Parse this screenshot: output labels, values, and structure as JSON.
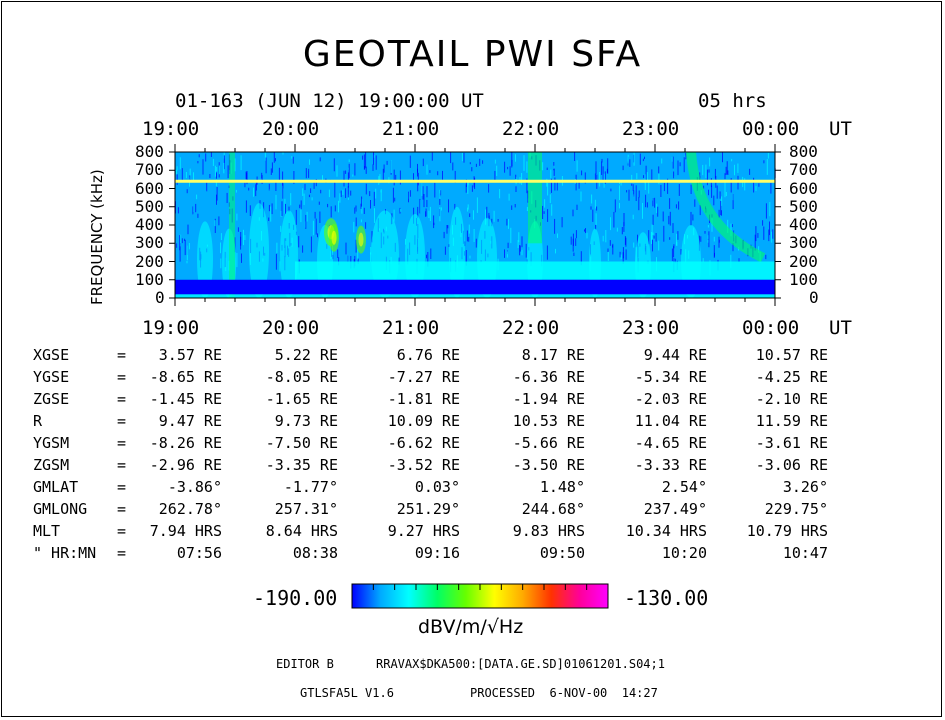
{
  "title": "GEOTAIL PWI SFA",
  "subtitle": "01-163 (JUN 12) 19:00:00 UT",
  "duration": "05 hrs",
  "chart_data": {
    "type": "heatmap",
    "xlabel": "UT",
    "ylabel": "FREQUENCY (kHz)",
    "x_ticks": [
      "19:00",
      "20:00",
      "21:00",
      "22:00",
      "23:00",
      "00:00"
    ],
    "x_unit": "UT",
    "y_ticks": [
      0,
      100,
      200,
      300,
      400,
      500,
      600,
      700,
      800
    ],
    "ylim": [
      0,
      800
    ],
    "colorbar": {
      "min_label": "-190.00",
      "max_label": "-130.00",
      "min": -190.0,
      "max": -130.0,
      "unit": "dBV/m/√Hz",
      "colors": [
        "#0000ff",
        "#00aaff",
        "#00ffff",
        "#00ff66",
        "#66ff00",
        "#ffff00",
        "#ffaa00",
        "#ff3300",
        "#ff0099",
        "#ff00ff"
      ]
    },
    "background_color": "#00aaff",
    "features": {
      "horizontal_line_khz": 640,
      "line_color": "#ffff66"
    }
  },
  "orbit": {
    "rows": [
      {
        "label": "XGSE",
        "sep": "=",
        "values": [
          "3.57 RE",
          "5.22 RE",
          "6.76 RE",
          "8.17 RE",
          "9.44 RE",
          "10.57 RE"
        ]
      },
      {
        "label": "YGSE",
        "sep": "=",
        "values": [
          "-8.65 RE",
          "-8.05 RE",
          "-7.27 RE",
          "-6.36 RE",
          "-5.34 RE",
          "-4.25 RE"
        ]
      },
      {
        "label": "ZGSE",
        "sep": "=",
        "values": [
          "-1.45 RE",
          "-1.65 RE",
          "-1.81 RE",
          "-1.94 RE",
          "-2.03 RE",
          "-2.10 RE"
        ]
      },
      {
        "label": "R",
        "sep": "=",
        "values": [
          "9.47 RE",
          "9.73 RE",
          "10.09 RE",
          "10.53 RE",
          "11.04 RE",
          "11.59 RE"
        ]
      },
      {
        "label": "YGSM",
        "sep": "=",
        "values": [
          "-8.26 RE",
          "-7.50 RE",
          "-6.62 RE",
          "-5.66 RE",
          "-4.65 RE",
          "-3.61 RE"
        ]
      },
      {
        "label": "ZGSM",
        "sep": "=",
        "values": [
          "-2.96 RE",
          "-3.35 RE",
          "-3.52 RE",
          "-3.50 RE",
          "-3.33 RE",
          "-3.06 RE"
        ]
      },
      {
        "label": "GMLAT",
        "sep": "=",
        "values": [
          "-3.86°",
          "-1.77°",
          "0.03°",
          "1.48°",
          "2.54°",
          "3.26°"
        ]
      },
      {
        "label": "GMLONG",
        "sep": "=",
        "values": [
          "262.78°",
          "257.31°",
          "251.29°",
          "244.68°",
          "237.49°",
          "229.75°"
        ]
      },
      {
        "label": "MLT",
        "sep": "=",
        "values": [
          "7.94 HRS",
          "8.64 HRS",
          "9.27 HRS",
          "9.83 HRS",
          "10.34 HRS",
          "10.79 HRS"
        ]
      },
      {
        "label": "\" HR:MN",
        "sep": "=",
        "values": [
          "07:56",
          "08:38",
          "09:16",
          "09:50",
          "10:20",
          "10:47"
        ]
      }
    ]
  },
  "footer": {
    "editor": "EDITOR B",
    "path": "RRAVAX$DKA500:[DATA.GE.SD]01061201.S04;1",
    "program": "GTLSFA5L V1.6",
    "processed": "PROCESSED  6-NOV-00  14:27"
  }
}
